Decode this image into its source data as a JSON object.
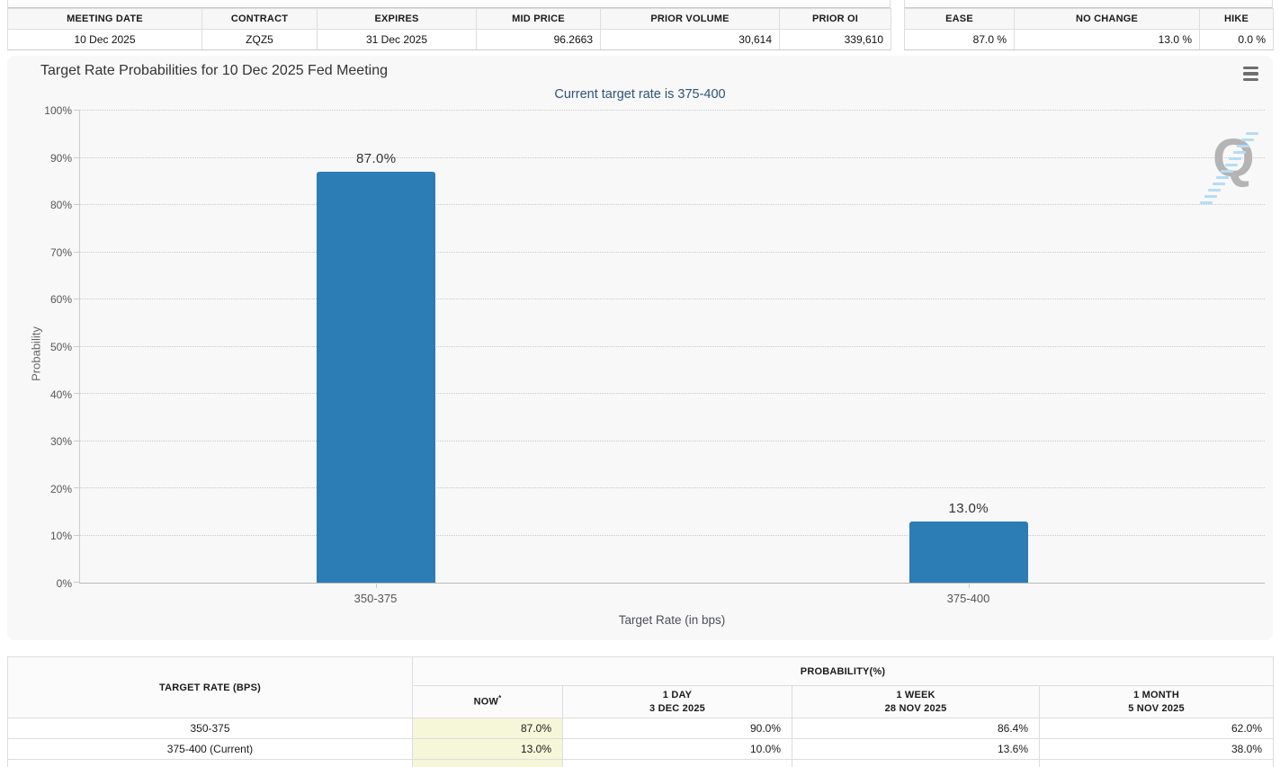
{
  "contract_table": {
    "headers": [
      "MEETING DATE",
      "CONTRACT",
      "EXPIRES",
      "MID PRICE",
      "PRIOR VOLUME",
      "PRIOR OI"
    ],
    "values": [
      "10 Dec 2025",
      "ZQZ5",
      "31 Dec 2025",
      "96.2663",
      "30,614",
      "339,610"
    ]
  },
  "summary_table": {
    "headers": [
      "EASE",
      "NO CHANGE",
      "HIKE"
    ],
    "values": [
      "87.0 %",
      "13.0 %",
      "0.0 %"
    ]
  },
  "chart": {
    "title": "Target Rate Probabilities for 10 Dec 2025 Fed Meeting",
    "subtitle": "Current target rate is 375-400",
    "watermark_letter": "Q",
    "menu_icon": "hamburger-icon"
  },
  "chart_data": {
    "type": "bar",
    "title": "Target Rate Probabilities for 10 Dec 2025 Fed Meeting",
    "subtitle": "Current target rate is 375-400",
    "categories": [
      "350-375",
      "375-400"
    ],
    "values": [
      87.0,
      13.0
    ],
    "value_labels": [
      "87.0%",
      "13.0%"
    ],
    "xlabel": "Target Rate (in bps)",
    "ylabel": "Probability",
    "ylim": [
      0,
      100
    ],
    "ytick_step": 10,
    "ytick_suffix": "%",
    "grid": "horizontal-dotted",
    "legend_position": "none",
    "bar_color": "#2c7cb5"
  },
  "prob_table": {
    "target_rate_header": "TARGET RATE (BPS)",
    "group_header": "PROBABILITY(%)",
    "columns": [
      {
        "line1": "NOW",
        "sup": "*",
        "line2": ""
      },
      {
        "line1": "1 DAY",
        "line2": "3 DEC 2025"
      },
      {
        "line1": "1 WEEK",
        "line2": "28 NOV 2025"
      },
      {
        "line1": "1 MONTH",
        "line2": "5 NOV 2025"
      }
    ],
    "rows": [
      {
        "label": "350-375",
        "values": [
          "87.0%",
          "90.0%",
          "86.4%",
          "62.0%"
        ]
      },
      {
        "label": "375-400 (Current)",
        "values": [
          "13.0%",
          "10.0%",
          "13.6%",
          "38.0%"
        ]
      }
    ]
  }
}
